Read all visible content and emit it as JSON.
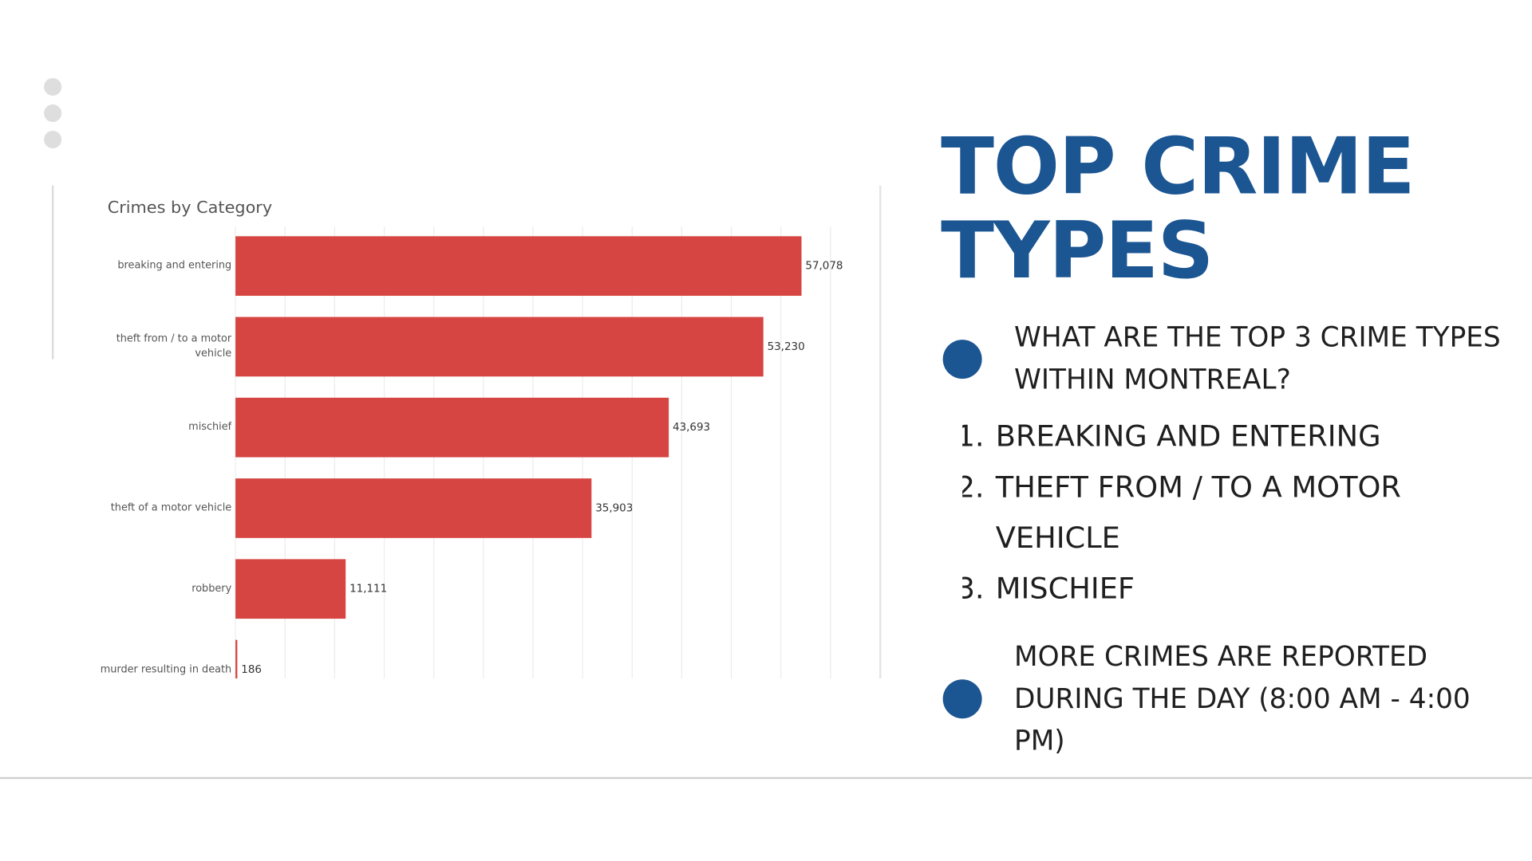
{
  "slide": {
    "title": "TOP CRIME TYPES",
    "bullets": [
      "WHAT ARE THE TOP 3 CRIME TYPES WITHIN MONTREAL?",
      "MORE CRIMES ARE REPORTED DURING THE DAY (8:00 AM - 4:00 PM)"
    ],
    "list": [
      "BREAKING AND ENTERING",
      "THEFT FROM / TO A MOTOR VEHICLE",
      "MISCHIEF"
    ]
  },
  "chart_data": {
    "type": "bar",
    "orientation": "horizontal",
    "title": "Crimes by Category",
    "categories": [
      "breaking and entering",
      "theft from / to a motor vehicle",
      "mischief",
      "theft of a motor vehicle",
      "robbery",
      "murder resulting in death"
    ],
    "values": [
      57078,
      53230,
      43693,
      35903,
      11111,
      186
    ],
    "value_labels": [
      "57,078",
      "53,230",
      "43,693",
      "35,903",
      "11,111",
      "186"
    ],
    "color": "#d64541",
    "xlim": [
      0,
      60000
    ],
    "xticks": [
      0,
      5000,
      10000,
      15000,
      20000,
      25000,
      30000,
      35000,
      40000,
      45000,
      50000,
      55000,
      60000
    ],
    "grid": true
  }
}
